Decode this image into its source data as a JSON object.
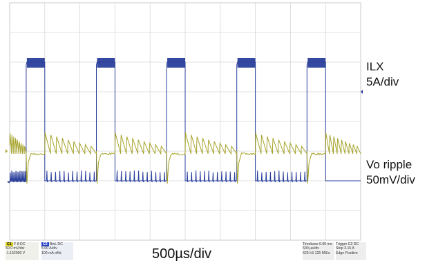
{
  "chart_data": {
    "type": "line",
    "title": "",
    "xlabel": "500µs/div",
    "ylabel": "",
    "grid": true,
    "divisions": {
      "x": 10,
      "y": 8
    },
    "x": {
      "unit": "µs",
      "per_div": 500,
      "range": [
        0,
        5000
      ]
    },
    "series": [
      {
        "name": "ILX",
        "scale": "5A/div",
        "color": "#2a3f9c",
        "kind": "square-wave",
        "period_us": 1000,
        "high_start_us": [
          235,
          1235,
          2235,
          3235,
          4235
        ],
        "high_end_us": [
          500,
          1500,
          2500,
          3500,
          4500
        ],
        "high_level_div": 6.0,
        "low_level_div": 2.0,
        "low_ringing_pulses_per_segment": 12
      },
      {
        "name": "Vo ripple",
        "scale": "50mV/div",
        "color": "#a5a228",
        "kind": "sawtooth-ripple",
        "period_us": 1000,
        "center_div": 3.0,
        "ripple_amplitude_div": 0.6,
        "negative_spike_div": 1.1,
        "sawteeth_per_segment": 9
      }
    ]
  },
  "labels": {
    "ch1_name": "ILX",
    "ch1_scale": "5A/div",
    "ch2_name": "Vo ripple",
    "ch2_scale": "50mV/div",
    "timebase": "500µs/div"
  },
  "status": {
    "ch1": {
      "tag": "C1",
      "line1": "F 8 DC",
      "line2": "50.0 mV/div",
      "line3": "-1.152000 V",
      "color": "#d8cf2a"
    },
    "ch2": {
      "tag": "C2",
      "line1": "BwL DC",
      "line2": "5.00 A/div",
      "line3": "100 mA offst",
      "color": "#2a45c4"
    },
    "timebase": {
      "head": "Timebase",
      "value": "0.00 ms",
      "line2": "500 µs/div",
      "line3": "625 kS",
      "line4": "125 MS/s"
    },
    "trigger": {
      "head": "Trigger",
      "value": "C3 DC",
      "line2": "Stop",
      "line3": "3.15 A",
      "line4": "Edge",
      "line5": "Positive"
    }
  },
  "colors": {
    "grid": "#d7d7d7",
    "frame": "#c8c8c8",
    "ch1": "#2a3f9c",
    "ch2": "#a5a228"
  }
}
